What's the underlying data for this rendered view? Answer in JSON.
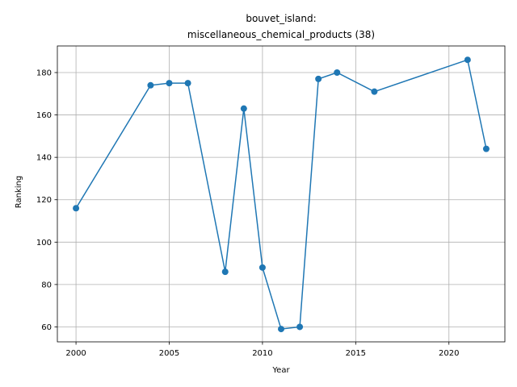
{
  "chart_data": {
    "type": "line",
    "title_line1": "bouvet_island:",
    "title_line2": "miscellaneous_chemical_products (38)",
    "xlabel": "Year",
    "ylabel": "Ranking",
    "xlim": [
      1999,
      2023
    ],
    "ylim": [
      52.95,
      192.55
    ],
    "x_ticks": [
      2000,
      2005,
      2010,
      2015,
      2020
    ],
    "y_ticks": [
      60,
      80,
      100,
      120,
      140,
      160,
      180
    ],
    "grid": true,
    "line_color": "#1f77b4",
    "x": [
      2000,
      2004,
      2005,
      2006,
      2008,
      2009,
      2010,
      2011,
      2012,
      2013,
      2014,
      2016,
      2021,
      2022
    ],
    "y": [
      116,
      174,
      175,
      175,
      86,
      163,
      88,
      59,
      60,
      177,
      180,
      171,
      186,
      144
    ]
  }
}
